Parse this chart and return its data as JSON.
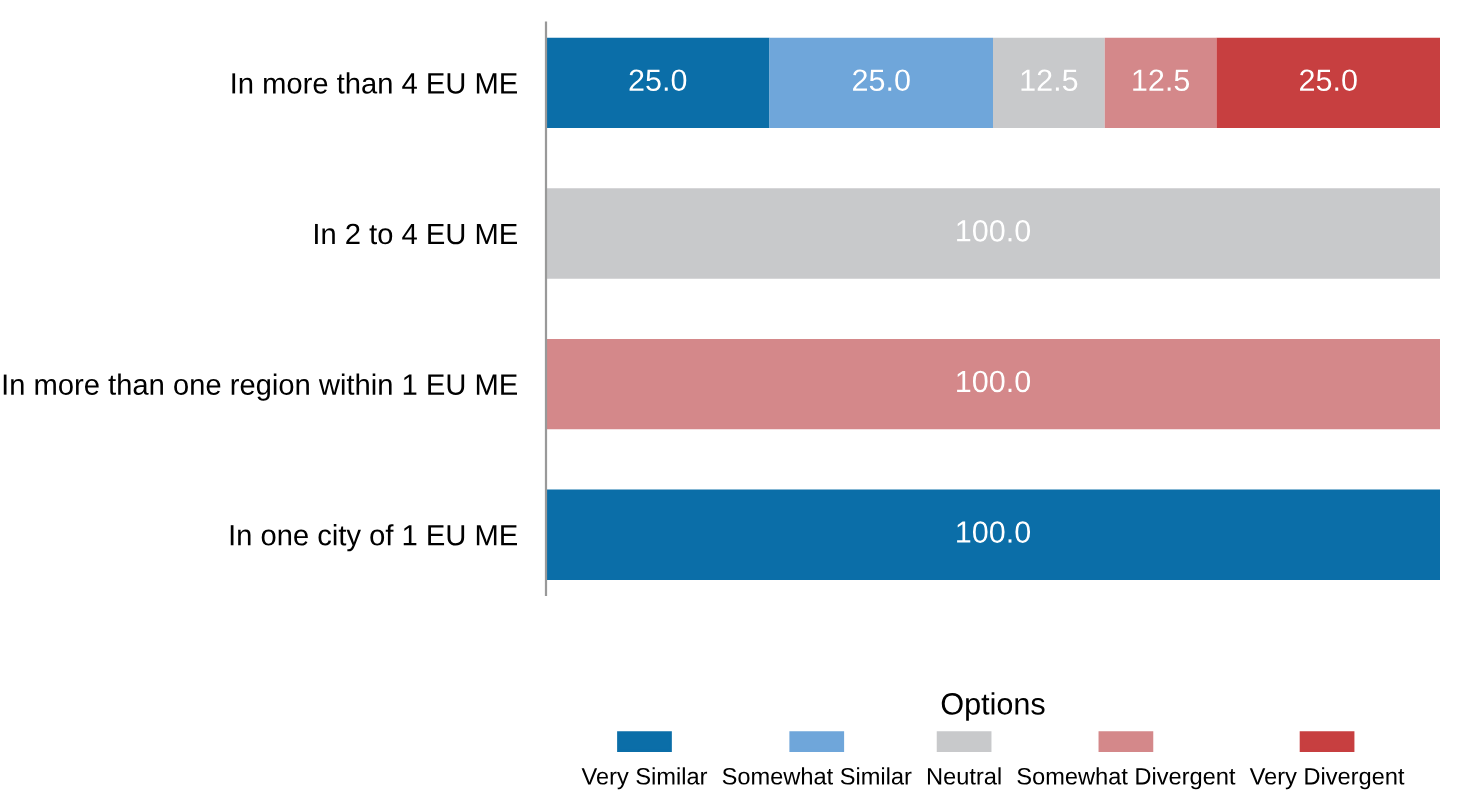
{
  "chart_data": {
    "type": "bar",
    "orientation": "horizontal",
    "stacked": true,
    "legend": "bottom",
    "legend_title": "Options",
    "categories": [
      "In more than 4 EU ME",
      "In 2 to 4 EU ME",
      "In more than one region within 1 EU ME",
      "In one city of 1 EU ME"
    ],
    "series": [
      {
        "name": "Very Similar",
        "color": "#0b6ea8",
        "values": [
          25.0,
          null,
          null,
          100.0
        ],
        "value_labels": [
          "25.0",
          null,
          null,
          "100.0"
        ]
      },
      {
        "name": "Somewhat Similar",
        "color": "#6fa6da",
        "values": [
          25.0,
          null,
          null,
          null
        ],
        "value_labels": [
          "25.0",
          null,
          null,
          null
        ]
      },
      {
        "name": "Neutral",
        "color": "#c8c9cb",
        "values": [
          12.5,
          100.0,
          null,
          null
        ],
        "value_labels": [
          "12.5",
          "100.0",
          null,
          null
        ]
      },
      {
        "name": "Somewhat Divergent",
        "color": "#d4888a",
        "values": [
          12.5,
          null,
          100.0,
          null
        ],
        "value_labels": [
          "12.5",
          null,
          "100.0",
          null
        ]
      },
      {
        "name": "Very Divergent",
        "color": "#c73f40",
        "values": [
          25.0,
          null,
          null,
          null
        ],
        "value_labels": [
          "25.0",
          null,
          null,
          null
        ]
      }
    ]
  }
}
